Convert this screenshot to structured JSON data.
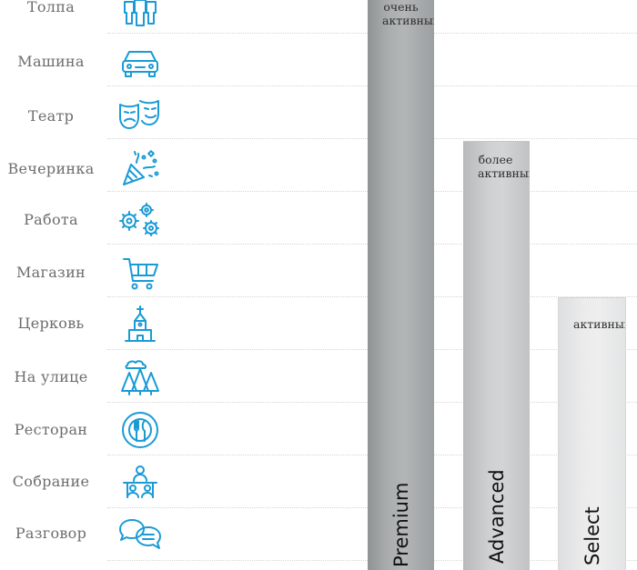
{
  "rows": [
    {
      "label": "Толпа",
      "icon": "crowd-icon"
    },
    {
      "label": "Машина",
      "icon": "car-icon"
    },
    {
      "label": "Театр",
      "icon": "theater-masks-icon"
    },
    {
      "label": "Вечеринка",
      "icon": "party-popper-icon"
    },
    {
      "label": "Работа",
      "icon": "gears-icon"
    },
    {
      "label": "Магазин",
      "icon": "shopping-cart-icon"
    },
    {
      "label": "Церковь",
      "icon": "church-icon"
    },
    {
      "label": "На улице",
      "icon": "outdoor-trees-icon"
    },
    {
      "label": "Ресторан",
      "icon": "restaurant-plate-icon"
    },
    {
      "label": "Собрание",
      "icon": "meeting-icon"
    },
    {
      "label": "Разговор",
      "icon": "conversation-bubbles-icon"
    }
  ],
  "bars": [
    {
      "caption_line1": "очень",
      "caption_line2": "активный",
      "name": "Premium"
    },
    {
      "caption_line1": "более",
      "caption_line2": "активный",
      "name": "Advanced"
    },
    {
      "caption_line1": "",
      "caption_line2": "активный",
      "name": "Select"
    }
  ],
  "colors": {
    "icon": "#1a9bd6",
    "label": "#6d6d6d"
  }
}
